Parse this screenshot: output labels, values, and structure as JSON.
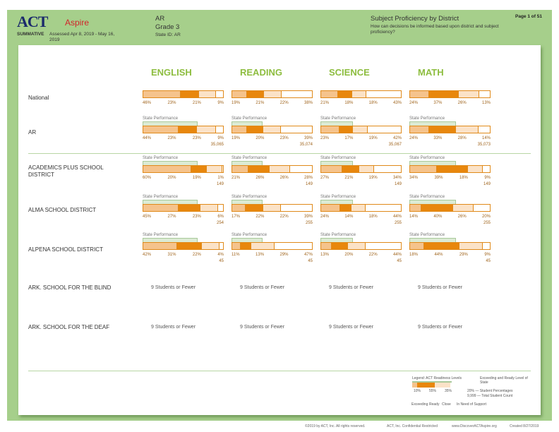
{
  "header": {
    "logo": "ACT Aspire",
    "logo_act": "ACT",
    "logo_aspire": "Aspire",
    "program": "SUMMATIVE",
    "assessed": "Assessed Apr 8, 2019 - May 16, 2019",
    "state": "AR",
    "grade": "Grade 3",
    "state_id": "State ID: AR",
    "report_title": "Subject Proficiency by District",
    "question": "How can decisions be informed based upon district and subject proficiency?",
    "page": "Page 1 of 51"
  },
  "subjects": [
    "ENGLISH",
    "READING",
    "SCIENCE",
    "MATH"
  ],
  "state_perf_label": "State Performance",
  "colors": {
    "exceeding": "#f5c38c",
    "ready": "#e8870d",
    "close": "#fbe2c7",
    "in_need": "#ffffff",
    "frame": "#a6cf8b",
    "state_bar": "#dcebd4"
  },
  "rows": [
    {
      "name": "National",
      "state_perf": false,
      "cells": [
        {
          "pct": [
            "46%",
            "23%",
            "21%",
            "9%"
          ]
        },
        {
          "pct": [
            "19%",
            "21%",
            "22%",
            "38%"
          ]
        },
        {
          "pct": [
            "21%",
            "18%",
            "18%",
            "43%"
          ]
        },
        {
          "pct": [
            "24%",
            "37%",
            "26%",
            "13%"
          ]
        }
      ]
    },
    {
      "name": "AR",
      "state_perf": true,
      "cells": [
        {
          "pct": [
            "44%",
            "23%",
            "23%",
            "9%"
          ],
          "count": "35,065"
        },
        {
          "pct": [
            "19%",
            "20%",
            "23%",
            "39%"
          ],
          "count": "35,074"
        },
        {
          "pct": [
            "23%",
            "17%",
            "19%",
            "42%"
          ],
          "count": "35,067"
        },
        {
          "pct": [
            "24%",
            "33%",
            "28%",
            "14%"
          ],
          "count": "35,073"
        }
      ]
    },
    {
      "name": "ACADEMICS PLUS SCHOOL DISTRICT",
      "state_perf": true,
      "cells": [
        {
          "pct": [
            "60%",
            "20%",
            "19%",
            "1%"
          ],
          "count": "149"
        },
        {
          "pct": [
            "21%",
            "26%",
            "26%",
            "28%"
          ],
          "count": "149"
        },
        {
          "pct": [
            "27%",
            "21%",
            "19%",
            "34%"
          ],
          "count": "149"
        },
        {
          "pct": [
            "34%",
            "39%",
            "18%",
            "9%"
          ],
          "count": "149"
        }
      ]
    },
    {
      "name": "ALMA SCHOOL DISTRICT",
      "state_perf": true,
      "cells": [
        {
          "pct": [
            "45%",
            "27%",
            "23%",
            "6%"
          ],
          "count": "254"
        },
        {
          "pct": [
            "17%",
            "22%",
            "22%",
            "39%"
          ],
          "count": "255"
        },
        {
          "pct": [
            "24%",
            "14%",
            "18%",
            "44%"
          ],
          "count": "255"
        },
        {
          "pct": [
            "14%",
            "40%",
            "26%",
            "20%"
          ],
          "count": "255"
        }
      ]
    },
    {
      "name": "ALPENA SCHOOL DISTRICT",
      "state_perf": true,
      "cells": [
        {
          "pct": [
            "42%",
            "31%",
            "22%",
            "4%"
          ],
          "count": "45"
        },
        {
          "pct": [
            "11%",
            "13%",
            "29%",
            "47%"
          ],
          "count": "45"
        },
        {
          "pct": [
            "13%",
            "20%",
            "22%",
            "44%"
          ],
          "count": "45"
        },
        {
          "pct": [
            "18%",
            "44%",
            "29%",
            "9%"
          ],
          "count": "45"
        }
      ]
    },
    {
      "name": "ARK. SCHOOL FOR THE BLIND",
      "few": "9 Students or Fewer"
    },
    {
      "name": "ARK. SCHOOL FOR THE DEAF",
      "few": "9 Students or Fewer"
    }
  ],
  "legend": {
    "title": "Legend: ACT Readiness Levels",
    "state_note": "Exceeding and Ready Level of State",
    "sample": [
      "10%",
      "55%",
      "35%"
    ],
    "pct_note": "20% — Student Percentages",
    "count_note": "9,999 — Total Student Count",
    "levels": [
      "Exceeding",
      "Ready",
      "Close",
      "In Need of Support"
    ]
  },
  "footer": {
    "copyright": "©2019 by ACT, Inc. All rights reserved.",
    "confidential": "ACT, Inc. Confidential Restricted",
    "url": "www.DiscoverACTAspire.org",
    "created": "Created 8/27/2019"
  }
}
